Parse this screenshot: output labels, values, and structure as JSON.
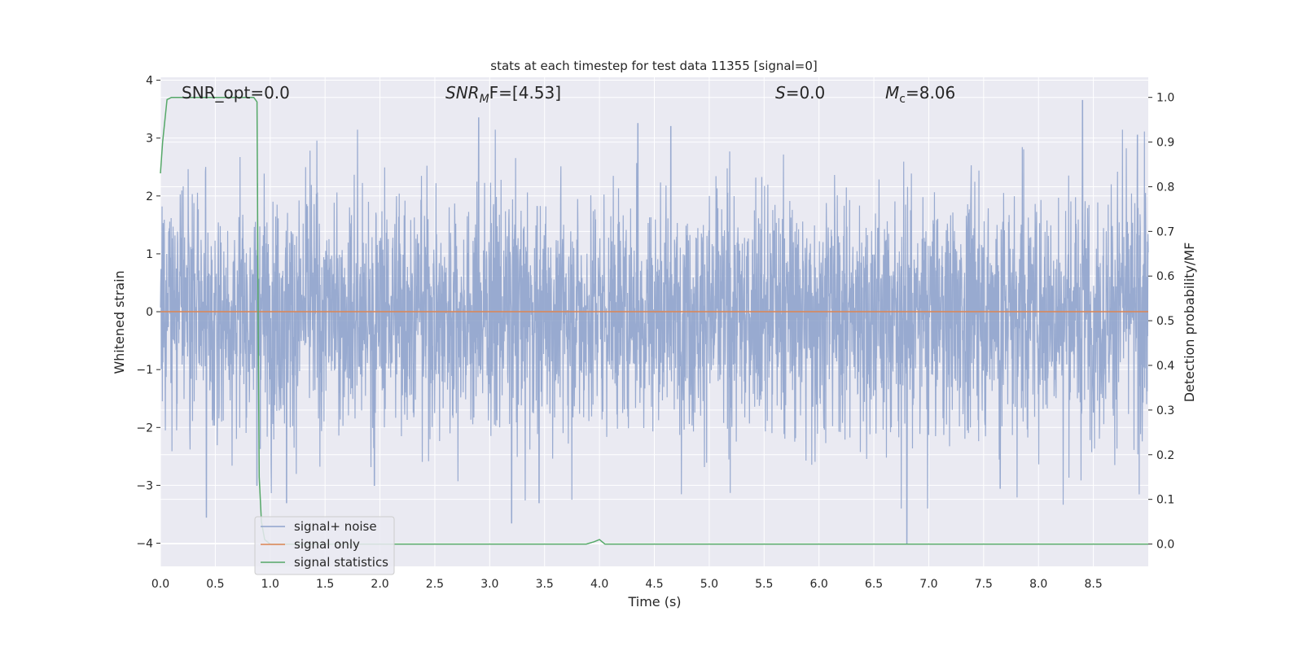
{
  "chart_data": {
    "type": "line",
    "title": "stats at each timestep for test data 11355 [signal=0]",
    "xlabel": "Time (s)",
    "ylabel": "Whitened strain",
    "y2label": "Detection probability/MF",
    "xlim": [
      0.0,
      9.0
    ],
    "ylim": [
      -4.4,
      4.05
    ],
    "y2lim": [
      -0.05,
      1.045
    ],
    "x_ticks": [
      "0.0",
      "0.5",
      "1.0",
      "1.5",
      "2.0",
      "2.5",
      "3.0",
      "3.5",
      "4.0",
      "4.5",
      "5.0",
      "5.5",
      "6.0",
      "6.5",
      "7.0",
      "7.5",
      "8.0",
      "8.5"
    ],
    "y_ticks": [
      "4",
      "3",
      "2",
      "1",
      "0",
      "−1",
      "−2",
      "−3",
      "−4"
    ],
    "y2_ticks": [
      "1.0",
      "0.9",
      "0.8",
      "0.7",
      "0.6",
      "0.5",
      "0.4",
      "0.3",
      "0.2",
      "0.1",
      "0.0"
    ],
    "grid": true,
    "legend_position": "lower-left",
    "annotations": {
      "snr_opt": "SNR_opt=0.0",
      "snr_mf_base": "SNR",
      "snr_mf_sub": "M",
      "snr_mf_tail": "F=[4.53]",
      "s_base": "S",
      "s_tail": "=0.0",
      "mc_base": "M",
      "mc_sub": "c",
      "mc_tail": "=8.06"
    },
    "series": [
      {
        "name": "signal+ noise",
        "color": "#8fa3cc",
        "axis": "left",
        "noise_envelope": {
          "typical_amplitude": 1.8,
          "peak_min": -4.0,
          "peak_max": 3.7
        },
        "notable_peaks": [
          {
            "x": 0.42,
            "y": -3.55
          },
          {
            "x": 0.88,
            "y": -3.0
          },
          {
            "x": 1.15,
            "y": -3.3
          },
          {
            "x": 1.95,
            "y": -3.0
          },
          {
            "x": 2.9,
            "y": 3.35
          },
          {
            "x": 3.2,
            "y": -3.65
          },
          {
            "x": 3.45,
            "y": -3.3
          },
          {
            "x": 4.35,
            "y": 3.25
          },
          {
            "x": 4.65,
            "y": 3.2
          },
          {
            "x": 6.8,
            "y": -4.0
          },
          {
            "x": 7.65,
            "y": -3.05
          },
          {
            "x": 8.4,
            "y": 3.65
          },
          {
            "x": 8.9,
            "y": 3.05
          }
        ]
      },
      {
        "name": "signal only",
        "color": "#dd8452",
        "axis": "left",
        "x": [
          0.0,
          9.0
        ],
        "y": [
          0.0,
          0.0
        ]
      },
      {
        "name": "signal statistics",
        "color": "#55a868",
        "axis": "right",
        "x": [
          0.0,
          0.02,
          0.06,
          0.1,
          0.2,
          0.5,
          0.85,
          0.88,
          0.89,
          0.9,
          0.92,
          0.95,
          1.0,
          2.0,
          3.0,
          3.88,
          3.95,
          4.0,
          4.05,
          4.1,
          5.0,
          6.0,
          7.0,
          8.0,
          9.0
        ],
        "y": [
          0.83,
          0.9,
          0.995,
          1.0,
          1.0,
          1.0,
          1.0,
          0.99,
          0.5,
          0.15,
          0.05,
          0.01,
          0.0,
          0.0,
          0.0,
          0.0,
          0.005,
          0.01,
          0.0,
          0.0,
          0.0,
          0.0,
          0.0,
          0.0,
          0.0
        ]
      }
    ]
  }
}
